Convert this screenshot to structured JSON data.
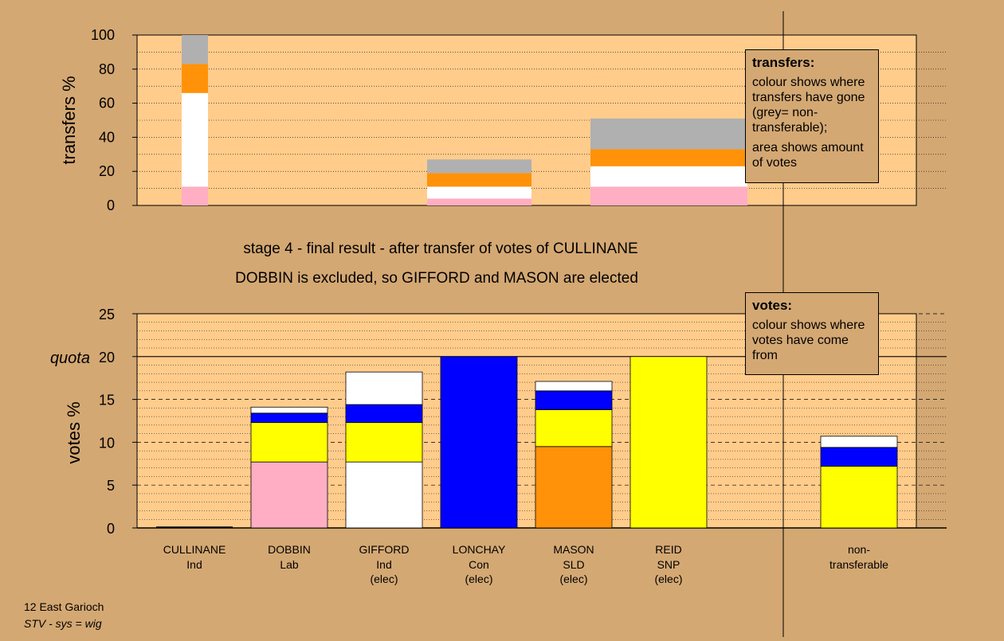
{
  "colors": {
    "background": "#d4a873",
    "plot_bg": "#ffcc8c",
    "pink": "#ffaec3",
    "white": "#ffffff",
    "orange": "#ff9209",
    "grey": "#b0b0b0",
    "yellow": "#ffff00",
    "blue": "#0000ff"
  },
  "title": {
    "line1": "stage 4 - final result - after transfer of votes of CULLINANE",
    "line2": "DOBBIN is excluded, so GIFFORD and MASON are elected"
  },
  "legend_transfers": {
    "title": "transfers:",
    "line1": "colour shows where transfers have gone (grey= non-transferable);",
    "line2": "area shows amount of votes"
  },
  "legend_votes": {
    "title": "votes:",
    "line1": "colour shows where votes have come from"
  },
  "footer": {
    "line1": "12 East Garioch",
    "line2": "STV - sys = wig"
  },
  "chart_data": [
    {
      "type": "bar",
      "subtype": "stacked",
      "ylabel": "transfers %",
      "ylim": [
        0,
        100
      ],
      "yticks": [
        0,
        20,
        40,
        60,
        80,
        100
      ],
      "grid": "dotted every 10",
      "bars": [
        {
          "candidate": "CULLINANE",
          "width": "narrow",
          "segments": [
            {
              "color": "pink",
              "value": 11
            },
            {
              "color": "white",
              "value": 55
            },
            {
              "color": "orange",
              "value": 17
            },
            {
              "color": "grey",
              "value": 17
            }
          ]
        },
        {
          "candidate": "LONCHAY",
          "width": "wide",
          "segments": [
            {
              "color": "pink",
              "value": 4
            },
            {
              "color": "white",
              "value": 7
            },
            {
              "color": "orange",
              "value": 8
            },
            {
              "color": "grey",
              "value": 8
            }
          ]
        },
        {
          "candidate": "REID",
          "width": "wide",
          "segments": [
            {
              "color": "pink",
              "value": 11
            },
            {
              "color": "white",
              "value": 12
            },
            {
              "color": "orange",
              "value": 10
            },
            {
              "color": "grey",
              "value": 18
            }
          ]
        }
      ]
    },
    {
      "type": "bar",
      "subtype": "stacked",
      "ylabel": "votes %",
      "ylim": [
        0,
        25
      ],
      "yticks": [
        0,
        5,
        10,
        15,
        20,
        25
      ],
      "quota": 20,
      "quota_label": "quota",
      "categories": [
        {
          "name": "CULLINANE",
          "party": "Ind",
          "status": ""
        },
        {
          "name": "DOBBIN",
          "party": "Lab",
          "status": ""
        },
        {
          "name": "GIFFORD",
          "party": "Ind",
          "status": "(elec)"
        },
        {
          "name": "LONCHAY",
          "party": "Con",
          "status": "(elec)"
        },
        {
          "name": "MASON",
          "party": "SLD",
          "status": "(elec)"
        },
        {
          "name": "REID",
          "party": "SNP",
          "status": "(elec)"
        }
      ],
      "extra_category": {
        "line1": "non-",
        "line2": "transferable"
      },
      "stacks": [
        [],
        [
          {
            "color": "pink",
            "value": 7.7
          },
          {
            "color": "yellow",
            "value": 4.6
          },
          {
            "color": "blue",
            "value": 1.1
          },
          {
            "color": "white",
            "value": 0.7
          }
        ],
        [
          {
            "color": "white",
            "value": 7.7
          },
          {
            "color": "yellow",
            "value": 4.6
          },
          {
            "color": "blue",
            "value": 2.1
          },
          {
            "color": "white",
            "value": 3.8
          }
        ],
        [
          {
            "color": "blue",
            "value": 20
          }
        ],
        [
          {
            "color": "orange",
            "value": 9.5
          },
          {
            "color": "yellow",
            "value": 4.3
          },
          {
            "color": "blue",
            "value": 2.2
          },
          {
            "color": "white",
            "value": 1.1
          }
        ],
        [
          {
            "color": "yellow",
            "value": 20
          }
        ],
        [
          {
            "color": "yellow",
            "value": 7.2
          },
          {
            "color": "blue",
            "value": 2.2
          },
          {
            "color": "white",
            "value": 1.3
          }
        ]
      ]
    }
  ]
}
